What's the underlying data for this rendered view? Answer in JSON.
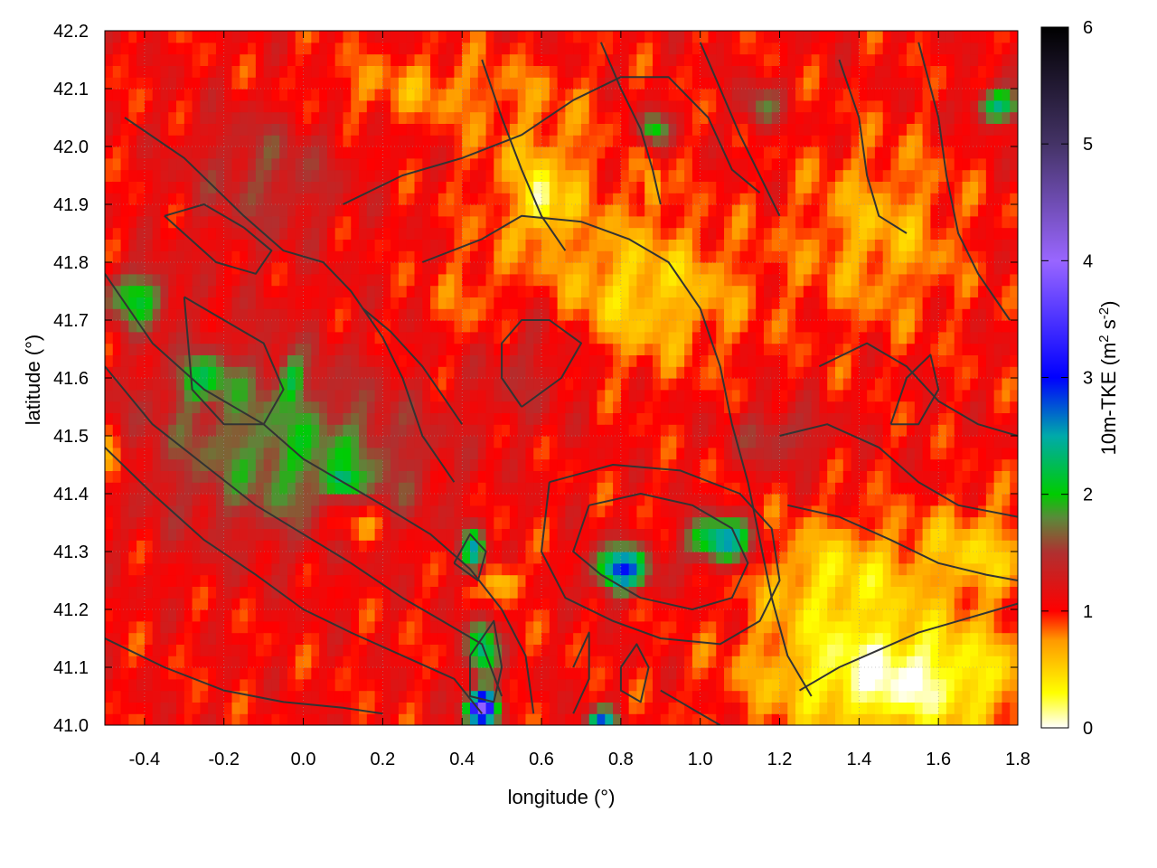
{
  "chart_data": {
    "type": "heatmap",
    "xlabel": "longitude (°)",
    "ylabel": "latitude (°)",
    "xlim": [
      -0.5,
      1.8
    ],
    "ylim": [
      41.0,
      42.2
    ],
    "x_ticks": [
      -0.4,
      -0.2,
      0.0,
      0.2,
      0.4,
      0.6,
      0.8,
      1.0,
      1.2,
      1.4,
      1.6,
      1.8
    ],
    "x_tick_labels": [
      "-0.4",
      "-0.2",
      "0.0",
      "0.2",
      "0.4",
      "0.6",
      "0.8",
      "1.0",
      "1.2",
      "1.4",
      "1.6",
      "1.8"
    ],
    "y_ticks": [
      41.0,
      41.1,
      41.2,
      41.3,
      41.4,
      41.5,
      41.6,
      41.7,
      41.8,
      41.9,
      42.0,
      42.1,
      42.2
    ],
    "y_tick_labels": [
      "41.0",
      "41.1",
      "41.2",
      "41.3",
      "41.4",
      "41.5",
      "41.6",
      "41.7",
      "41.8",
      "41.9",
      "42.0",
      "42.1",
      "42.2"
    ],
    "grid": true,
    "colorbar": {
      "label_main": "10m-TKE (m",
      "label_sup1": "2",
      "label_mid": " s",
      "label_sup2": "-2",
      "label_end": ")",
      "range": [
        0,
        6
      ],
      "ticks": [
        0,
        1,
        2,
        3,
        4,
        5,
        6
      ],
      "tick_labels": [
        "0",
        "1",
        "2",
        "3",
        "4",
        "5",
        "6"
      ],
      "stops": [
        {
          "v": 0.0,
          "color": "#ffffff"
        },
        {
          "v": 0.3,
          "color": "#ffff00"
        },
        {
          "v": 0.75,
          "color": "#ff9900"
        },
        {
          "v": 1.0,
          "color": "#ff0000"
        },
        {
          "v": 1.5,
          "color": "#b03030"
        },
        {
          "v": 1.8,
          "color": "#5a8a3a"
        },
        {
          "v": 2.0,
          "color": "#00cc00"
        },
        {
          "v": 2.5,
          "color": "#00aaaa"
        },
        {
          "v": 3.0,
          "color": "#0000ff"
        },
        {
          "v": 4.0,
          "color": "#9966ff"
        },
        {
          "v": 5.0,
          "color": "#443366"
        },
        {
          "v": 6.0,
          "color": "#000000"
        }
      ]
    },
    "field": {
      "background": 1.05,
      "blobs": [
        {
          "lon": -0.15,
          "lat": 41.5,
          "rx": 0.3,
          "ry": 0.18,
          "v": 0.55
        },
        {
          "lon": 0.1,
          "lat": 41.45,
          "rx": 0.25,
          "ry": 0.12,
          "v": 0.5
        },
        {
          "lon": -0.1,
          "lat": 41.95,
          "rx": 0.2,
          "ry": 0.12,
          "v": 0.45
        },
        {
          "lon": 0.55,
          "lat": 41.65,
          "rx": 0.15,
          "ry": 0.12,
          "v": 0.4
        },
        {
          "lon": 1.2,
          "lat": 41.5,
          "rx": 0.12,
          "ry": 0.05,
          "v": 0.5
        },
        {
          "lon": -0.42,
          "lat": 41.74,
          "rx": 0.08,
          "ry": 0.05,
          "v": 1.0
        },
        {
          "lon": -0.25,
          "lat": 41.6,
          "rx": 0.07,
          "ry": 0.04,
          "v": 0.7
        },
        {
          "lon": -0.03,
          "lat": 41.6,
          "rx": 0.03,
          "ry": 0.04,
          "v": 0.7
        },
        {
          "lon": 0.1,
          "lat": 41.42,
          "rx": 0.04,
          "ry": 0.02,
          "v": 0.7
        },
        {
          "lon": 0.8,
          "lat": 41.27,
          "rx": 0.07,
          "ry": 0.04,
          "v": 1.8
        },
        {
          "lon": 1.05,
          "lat": 41.32,
          "rx": 0.08,
          "ry": 0.04,
          "v": 1.6
        },
        {
          "lon": 0.43,
          "lat": 41.3,
          "rx": 0.03,
          "ry": 0.04,
          "v": 1.4
        },
        {
          "lon": 0.45,
          "lat": 41.13,
          "rx": 0.04,
          "ry": 0.05,
          "v": 1.4
        },
        {
          "lon": 0.45,
          "lat": 41.03,
          "rx": 0.04,
          "ry": 0.03,
          "v": 2.8
        },
        {
          "lon": 0.75,
          "lat": 41.01,
          "rx": 0.04,
          "ry": 0.02,
          "v": 1.5
        },
        {
          "lon": 0.88,
          "lat": 42.03,
          "rx": 0.04,
          "ry": 0.03,
          "v": 1.0
        },
        {
          "lon": 1.75,
          "lat": 42.07,
          "rx": 0.06,
          "ry": 0.03,
          "v": 1.3
        },
        {
          "lon": 1.15,
          "lat": 42.07,
          "rx": 0.05,
          "ry": 0.04,
          "v": 0.7
        },
        {
          "lon": 0.85,
          "lat": 41.75,
          "rx": 0.25,
          "ry": 0.12,
          "v": -0.55
        },
        {
          "lon": 1.35,
          "lat": 41.25,
          "rx": 0.2,
          "ry": 0.1,
          "v": -0.6
        },
        {
          "lon": 0.6,
          "lat": 41.95,
          "rx": 0.15,
          "ry": 0.12,
          "v": -0.4
        },
        {
          "lon": 0.45,
          "lat": 41.72,
          "rx": 0.12,
          "ry": 0.1,
          "v": -0.3
        },
        {
          "lon": 1.45,
          "lat": 41.85,
          "rx": 0.2,
          "ry": 0.15,
          "v": -0.4
        },
        {
          "lon": 0.3,
          "lat": 42.1,
          "rx": 0.3,
          "ry": 0.06,
          "v": -0.3
        },
        {
          "lon": 0.12,
          "lat": 41.35,
          "rx": 0.08,
          "ry": 0.04,
          "v": -0.6
        },
        {
          "lon": 0.5,
          "lat": 41.25,
          "rx": 0.05,
          "ry": 0.03,
          "v": -0.6
        },
        {
          "lon": 0.6,
          "lat": 41.9,
          "rx": 0.03,
          "ry": 0.05,
          "v": -0.7
        },
        {
          "lon": 0.88,
          "lat": 41.93,
          "rx": 0.02,
          "ry": 0.04,
          "v": -0.6
        },
        {
          "lon": 1.5,
          "lat": 41.08,
          "rx": 0.32,
          "ry": 0.1,
          "v": -1.0
        },
        {
          "lon": 1.7,
          "lat": 41.3,
          "rx": 0.15,
          "ry": 0.08,
          "v": -0.5
        },
        {
          "lon": -0.48,
          "lat": 41.45,
          "rx": 0.03,
          "ry": 0.05,
          "v": -0.6
        }
      ]
    },
    "contours": [
      [
        [
          -0.45,
          42.05
        ],
        [
          -0.3,
          41.98
        ],
        [
          -0.15,
          41.88
        ],
        [
          -0.05,
          41.82
        ],
        [
          0.05,
          41.8
        ],
        [
          0.12,
          41.75
        ],
        [
          0.2,
          41.67
        ],
        [
          0.25,
          41.6
        ],
        [
          0.3,
          41.5
        ],
        [
          0.38,
          41.42
        ]
      ],
      [
        [
          -0.5,
          41.78
        ],
        [
          -0.38,
          41.66
        ],
        [
          -0.25,
          41.58
        ],
        [
          -0.1,
          41.52
        ],
        [
          0.0,
          41.46
        ],
        [
          0.1,
          41.42
        ],
        [
          0.2,
          41.38
        ],
        [
          0.32,
          41.33
        ],
        [
          0.42,
          41.27
        ],
        [
          0.5,
          41.2
        ],
        [
          0.56,
          41.12
        ],
        [
          0.58,
          41.02
        ]
      ],
      [
        [
          -0.5,
          41.62
        ],
        [
          -0.38,
          41.52
        ],
        [
          -0.25,
          41.45
        ],
        [
          -0.12,
          41.38
        ],
        [
          0.0,
          41.33
        ],
        [
          0.12,
          41.28
        ],
        [
          0.25,
          41.22
        ],
        [
          0.35,
          41.18
        ],
        [
          0.45,
          41.14
        ],
        [
          0.5,
          41.05
        ]
      ],
      [
        [
          -0.5,
          41.48
        ],
        [
          -0.38,
          41.4
        ],
        [
          -0.25,
          41.32
        ],
        [
          -0.12,
          41.26
        ],
        [
          0.0,
          41.2
        ],
        [
          0.12,
          41.16
        ],
        [
          0.25,
          41.12
        ],
        [
          0.38,
          41.08
        ],
        [
          0.45,
          41.02
        ]
      ],
      [
        [
          -0.5,
          41.15
        ],
        [
          -0.35,
          41.1
        ],
        [
          -0.2,
          41.06
        ],
        [
          -0.05,
          41.04
        ],
        [
          0.1,
          41.03
        ],
        [
          0.2,
          41.02
        ]
      ],
      [
        [
          0.55,
          41.55
        ],
        [
          0.65,
          41.6
        ],
        [
          0.7,
          41.66
        ],
        [
          0.62,
          41.7
        ],
        [
          0.55,
          41.7
        ],
        [
          0.5,
          41.66
        ],
        [
          0.5,
          41.6
        ],
        [
          0.55,
          41.55
        ]
      ],
      [
        [
          0.3,
          41.8
        ],
        [
          0.45,
          41.84
        ],
        [
          0.55,
          41.88
        ],
        [
          0.7,
          41.87
        ],
        [
          0.82,
          41.84
        ],
        [
          0.92,
          41.8
        ],
        [
          1.0,
          41.72
        ],
        [
          1.05,
          41.62
        ],
        [
          1.08,
          41.52
        ],
        [
          1.12,
          41.42
        ],
        [
          1.15,
          41.32
        ],
        [
          1.18,
          41.22
        ],
        [
          1.22,
          41.12
        ],
        [
          1.28,
          41.05
        ]
      ],
      [
        [
          0.1,
          41.9
        ],
        [
          0.25,
          41.95
        ],
        [
          0.4,
          41.98
        ],
        [
          0.55,
          42.02
        ],
        [
          0.68,
          42.08
        ],
        [
          0.8,
          42.12
        ],
        [
          0.92,
          42.12
        ],
        [
          1.02,
          42.05
        ],
        [
          1.08,
          41.96
        ],
        [
          1.15,
          41.92
        ]
      ],
      [
        [
          0.45,
          42.15
        ],
        [
          0.5,
          42.05
        ],
        [
          0.55,
          41.96
        ],
        [
          0.6,
          41.88
        ],
        [
          0.66,
          41.82
        ]
      ],
      [
        [
          0.75,
          42.18
        ],
        [
          0.8,
          42.1
        ],
        [
          0.85,
          42.03
        ],
        [
          0.88,
          41.96
        ],
        [
          0.9,
          41.9
        ]
      ],
      [
        [
          1.0,
          42.18
        ],
        [
          1.05,
          42.1
        ],
        [
          1.1,
          42.02
        ],
        [
          1.15,
          41.95
        ],
        [
          1.2,
          41.88
        ]
      ],
      [
        [
          1.35,
          42.15
        ],
        [
          1.4,
          42.05
        ],
        [
          1.42,
          41.95
        ],
        [
          1.45,
          41.88
        ],
        [
          1.52,
          41.85
        ]
      ],
      [
        [
          1.55,
          42.18
        ],
        [
          1.6,
          42.05
        ],
        [
          1.62,
          41.95
        ],
        [
          1.65,
          41.85
        ],
        [
          1.7,
          41.78
        ],
        [
          1.78,
          41.7
        ]
      ],
      [
        [
          0.72,
          41.38
        ],
        [
          0.85,
          41.4
        ],
        [
          0.98,
          41.38
        ],
        [
          1.08,
          41.34
        ],
        [
          1.12,
          41.28
        ],
        [
          1.08,
          41.22
        ],
        [
          0.98,
          41.2
        ],
        [
          0.85,
          41.22
        ],
        [
          0.75,
          41.26
        ],
        [
          0.68,
          41.3
        ],
        [
          0.72,
          41.38
        ]
      ],
      [
        [
          0.62,
          41.42
        ],
        [
          0.78,
          41.45
        ],
        [
          0.95,
          41.44
        ],
        [
          1.1,
          41.4
        ],
        [
          1.18,
          41.34
        ],
        [
          1.2,
          41.25
        ],
        [
          1.15,
          41.18
        ],
        [
          1.05,
          41.14
        ],
        [
          0.9,
          41.15
        ],
        [
          0.78,
          41.18
        ],
        [
          0.66,
          41.22
        ],
        [
          0.6,
          41.3
        ],
        [
          0.62,
          41.42
        ]
      ],
      [
        [
          1.22,
          41.38
        ],
        [
          1.35,
          41.36
        ],
        [
          1.48,
          41.32
        ],
        [
          1.6,
          41.28
        ],
        [
          1.72,
          41.26
        ],
        [
          1.8,
          41.25
        ]
      ],
      [
        [
          1.2,
          41.5
        ],
        [
          1.32,
          41.52
        ],
        [
          1.45,
          41.48
        ],
        [
          1.55,
          41.42
        ],
        [
          1.65,
          41.38
        ],
        [
          1.8,
          41.36
        ]
      ],
      [
        [
          1.3,
          41.62
        ],
        [
          1.42,
          41.66
        ],
        [
          1.52,
          41.62
        ],
        [
          1.6,
          41.56
        ],
        [
          1.7,
          41.52
        ],
        [
          1.8,
          41.5
        ]
      ],
      [
        [
          0.9,
          41.06
        ],
        [
          1.0,
          41.02
        ],
        [
          1.05,
          41.0
        ]
      ],
      [
        [
          1.25,
          41.06
        ],
        [
          1.35,
          41.1
        ],
        [
          1.45,
          41.13
        ],
        [
          1.55,
          41.16
        ],
        [
          1.65,
          41.18
        ],
        [
          1.75,
          41.2
        ],
        [
          1.8,
          41.21
        ]
      ],
      [
        [
          0.42,
          41.12
        ],
        [
          0.48,
          41.18
        ],
        [
          0.5,
          41.1
        ],
        [
          0.48,
          41.04
        ],
        [
          0.42,
          41.05
        ],
        [
          0.42,
          41.12
        ]
      ],
      [
        [
          0.38,
          41.28
        ],
        [
          0.42,
          41.33
        ],
        [
          0.46,
          41.3
        ],
        [
          0.44,
          41.25
        ],
        [
          0.38,
          41.28
        ]
      ],
      [
        [
          0.68,
          41.1
        ],
        [
          0.72,
          41.16
        ],
        [
          0.72,
          41.08
        ],
        [
          0.68,
          41.02
        ]
      ],
      [
        [
          0.8,
          41.1
        ],
        [
          0.84,
          41.14
        ],
        [
          0.87,
          41.1
        ],
        [
          0.85,
          41.04
        ],
        [
          0.8,
          41.06
        ],
        [
          0.8,
          41.1
        ]
      ],
      [
        [
          -0.3,
          41.74
        ],
        [
          -0.2,
          41.7
        ],
        [
          -0.1,
          41.66
        ],
        [
          -0.05,
          41.58
        ],
        [
          -0.1,
          41.52
        ],
        [
          -0.2,
          41.52
        ],
        [
          -0.28,
          41.58
        ],
        [
          -0.3,
          41.74
        ]
      ],
      [
        [
          0.15,
          41.72
        ],
        [
          0.22,
          41.68
        ],
        [
          0.3,
          41.62
        ],
        [
          0.36,
          41.56
        ],
        [
          0.4,
          41.52
        ]
      ],
      [
        [
          1.48,
          41.52
        ],
        [
          1.52,
          41.6
        ],
        [
          1.58,
          41.64
        ],
        [
          1.6,
          41.58
        ],
        [
          1.55,
          41.52
        ],
        [
          1.48,
          41.52
        ]
      ],
      [
        [
          -0.35,
          41.88
        ],
        [
          -0.25,
          41.9
        ],
        [
          -0.15,
          41.86
        ],
        [
          -0.08,
          41.82
        ],
        [
          -0.12,
          41.78
        ],
        [
          -0.22,
          41.8
        ],
        [
          -0.35,
          41.88
        ]
      ]
    ]
  }
}
